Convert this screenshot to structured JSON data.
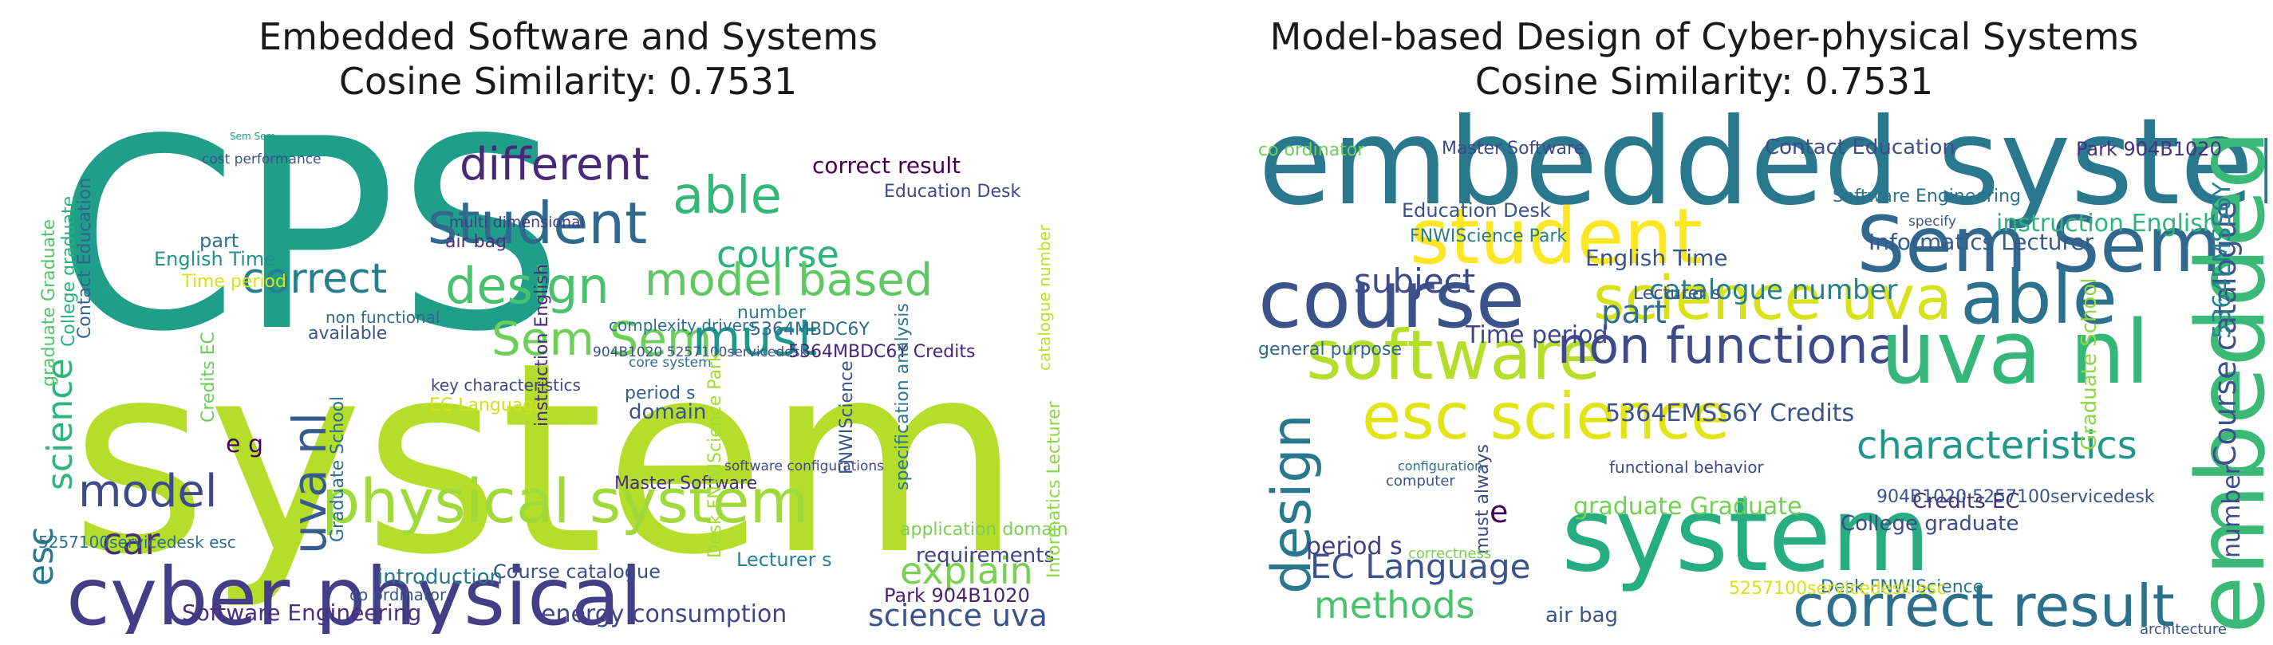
{
  "panels": [
    {
      "title_line1": "Embedded Software and Systems",
      "title_line2": "Cosine Similarity: 0.7531"
    },
    {
      "title_line1": "Model-based Design of Cyber-physical Systems",
      "title_line2": "Cosine Similarity: 0.7531"
    }
  ],
  "clouds": [
    {
      "words": [
        {
          "text": "CPS",
          "color": "#1f9e89"
        },
        {
          "text": "system",
          "color": "#b5de2b"
        },
        {
          "text": "cyber physical",
          "color": "#433e85"
        },
        {
          "text": "physical system",
          "color": "#9fda3a"
        },
        {
          "text": "different",
          "color": "#482878"
        },
        {
          "text": "student",
          "color": "#31688e"
        },
        {
          "text": "able",
          "color": "#35b779"
        },
        {
          "text": "course",
          "color": "#2db27d"
        },
        {
          "text": "design",
          "color": "#4ac16d"
        },
        {
          "text": "model based",
          "color": "#5ec962"
        },
        {
          "text": "Sem Sem",
          "color": "#6ece58"
        },
        {
          "text": "must",
          "color": "#1f988b"
        },
        {
          "text": "correct",
          "color": "#277f8e"
        },
        {
          "text": "model",
          "color": "#3e4a89"
        },
        {
          "text": "car",
          "color": "#472d7b"
        },
        {
          "text": "esc",
          "color": "#2a788e"
        },
        {
          "text": "science",
          "color": "#2fb47c"
        },
        {
          "text": "uva nl",
          "color": "#365c8d"
        },
        {
          "text": "explain",
          "color": "#7ad151"
        },
        {
          "text": "science uva",
          "color": "#3b528b"
        },
        {
          "text": "energy consumption",
          "color": "#404688"
        },
        {
          "text": "Software Engineering",
          "color": "#46327e"
        },
        {
          "text": "correct result",
          "color": "#440154"
        },
        {
          "text": "Education Desk",
          "color": "#3e4989"
        },
        {
          "text": "English Time",
          "color": "#21918c"
        },
        {
          "text": "Time period",
          "color": "#d8e219"
        },
        {
          "text": "available",
          "color": "#3b528b"
        },
        {
          "text": "5364MBDC6Y",
          "color": "#31688e"
        },
        {
          "text": "5364MBDC6Y Credits",
          "color": "#482475"
        },
        {
          "text": "904B1020 5257100servicedesk",
          "color": "#3b528b"
        },
        {
          "text": "Graduate School",
          "color": "#2c728e"
        },
        {
          "text": "Course catalogue",
          "color": "#3d4e8a"
        },
        {
          "text": "Master Software",
          "color": "#46307e"
        },
        {
          "text": "requirements",
          "color": "#414487"
        },
        {
          "text": "application domains",
          "color": "#7ad151"
        },
        {
          "text": "introduction",
          "color": "#2a788e"
        },
        {
          "text": "co ordinator",
          "color": "#3a548c"
        },
        {
          "text": "Park 904B1020",
          "color": "#482173"
        },
        {
          "text": "Informatics Lecturer",
          "color": "#8fd744"
        },
        {
          "text": "catalogue number",
          "color": "#c2df23"
        },
        {
          "text": "5257100servicedesk esc",
          "color": "#2e6f8e"
        },
        {
          "text": "e g",
          "color": "#440154"
        },
        {
          "text": "domain",
          "color": "#3b528b"
        },
        {
          "text": "period s",
          "color": "#365d8d"
        },
        {
          "text": "EC Language",
          "color": "#d0e11c"
        },
        {
          "text": "key characteristics",
          "color": "#3f4788"
        },
        {
          "text": "core system",
          "color": "#2c728e"
        },
        {
          "text": "non functional",
          "color": "#31688e"
        },
        {
          "text": "number",
          "color": "#287c8e"
        },
        {
          "text": "complexity drivers",
          "color": "#2d708e"
        },
        {
          "text": "part",
          "color": "#2e6e8e"
        },
        {
          "text": "graduate Graduate",
          "color": "#52c569"
        },
        {
          "text": "College graduate",
          "color": "#29af7f"
        },
        {
          "text": "Contact Education",
          "color": "#32648e"
        },
        {
          "text": "instruction English",
          "color": "#472c7a"
        },
        {
          "text": "Credits EC",
          "color": "#6ccd5a"
        },
        {
          "text": "FNWIScience",
          "color": "#3b528b"
        },
        {
          "text": "Desk FNWIScience Park",
          "color": "#a2da37"
        },
        {
          "text": "Lecturer s",
          "color": "#26828e"
        },
        {
          "text": "air bag",
          "color": "#46337f"
        },
        {
          "text": "specification analysis",
          "color": "#2a788e"
        },
        {
          "text": "software configurations",
          "color": "#3f4889"
        },
        {
          "text": "Sem Sem",
          "color": "#1f9a8a"
        },
        {
          "text": "cost performance",
          "color": "#3b528b"
        },
        {
          "text": "multi dimensional",
          "color": "#433e85"
        }
      ]
    },
    {
      "words": [
        {
          "text": "embedded system",
          "color": "#2a788e"
        },
        {
          "text": "student",
          "color": "#fde725"
        },
        {
          "text": "Sem Sem",
          "color": "#31688e"
        },
        {
          "text": "course",
          "color": "#3b528b"
        },
        {
          "text": "embedded",
          "color": "#3aba76"
        },
        {
          "text": "science uva",
          "color": "#d8e219"
        },
        {
          "text": "software",
          "color": "#b5de2b"
        },
        {
          "text": "non functional",
          "color": "#3e4a89"
        },
        {
          "text": "uva nl",
          "color": "#35b779"
        },
        {
          "text": "able",
          "color": "#2c728e"
        },
        {
          "text": "esc science",
          "color": "#e2e418"
        },
        {
          "text": "design",
          "color": "#2a788e"
        },
        {
          "text": "system",
          "color": "#26ad81"
        },
        {
          "text": "correct result",
          "color": "#2d708e"
        },
        {
          "text": "characteristics",
          "color": "#1f988b"
        },
        {
          "text": "methods",
          "color": "#4ac16d"
        },
        {
          "text": "EC Language",
          "color": "#3b528b"
        },
        {
          "text": "subject",
          "color": "#3e4989"
        },
        {
          "text": "part",
          "color": "#2e6e8e"
        },
        {
          "text": "catalogue number",
          "color": "#287c8e"
        },
        {
          "text": "English Time",
          "color": "#3a548c"
        },
        {
          "text": "Time period",
          "color": "#3f4788"
        },
        {
          "text": "5364EMSS6Y Credits",
          "color": "#3b528b"
        },
        {
          "text": "instruction English",
          "color": "#2fb47c"
        },
        {
          "text": "Informatics Lecturer",
          "color": "#375a8c"
        },
        {
          "text": "Credits EC",
          "color": "#46327e"
        },
        {
          "text": "College graduate",
          "color": "#3e4a89"
        },
        {
          "text": "graduate Graduate",
          "color": "#74d055"
        },
        {
          "text": "period s",
          "color": "#433e85"
        },
        {
          "text": "Contact Education",
          "color": "#3d4e8a"
        },
        {
          "text": "Master Software",
          "color": "#3e4989"
        },
        {
          "text": "co ordinator",
          "color": "#6ece58"
        },
        {
          "text": "Park 904B1020",
          "color": "#46327e"
        },
        {
          "text": "Software Engineering",
          "color": "#2c728e"
        },
        {
          "text": "Education Desk",
          "color": "#3b528b"
        },
        {
          "text": "FNWIScience Park",
          "color": "#287c8e"
        },
        {
          "text": "Lecturer s",
          "color": "#3b528b"
        },
        {
          "text": "general purpose",
          "color": "#31688e"
        },
        {
          "text": "Course catalogue",
          "color": "#3b528b"
        },
        {
          "text": "5364EMSS6Y",
          "color": "#26828e"
        },
        {
          "text": "number",
          "color": "#3e4a89"
        },
        {
          "text": "Graduate School",
          "color": "#8fd744"
        },
        {
          "text": "904B1020 5257100servicedesk",
          "color": "#3b528b"
        },
        {
          "text": "Desk FNWIScience",
          "color": "#2c728e"
        },
        {
          "text": "5257100servicedesk esc",
          "color": "#d8e219"
        },
        {
          "text": "air bag",
          "color": "#3b528b"
        },
        {
          "text": "must always",
          "color": "#3e4989"
        },
        {
          "text": "e",
          "color": "#440154"
        },
        {
          "text": "functional behavior",
          "color": "#3e4a89"
        },
        {
          "text": "computer",
          "color": "#3b528b"
        },
        {
          "text": "correctness",
          "color": "#7ad151"
        },
        {
          "text": "architecture",
          "color": "#3b528b"
        },
        {
          "text": "configuration",
          "color": "#2c728e"
        },
        {
          "text": "specify",
          "color": "#3b528b"
        }
      ]
    }
  ]
}
